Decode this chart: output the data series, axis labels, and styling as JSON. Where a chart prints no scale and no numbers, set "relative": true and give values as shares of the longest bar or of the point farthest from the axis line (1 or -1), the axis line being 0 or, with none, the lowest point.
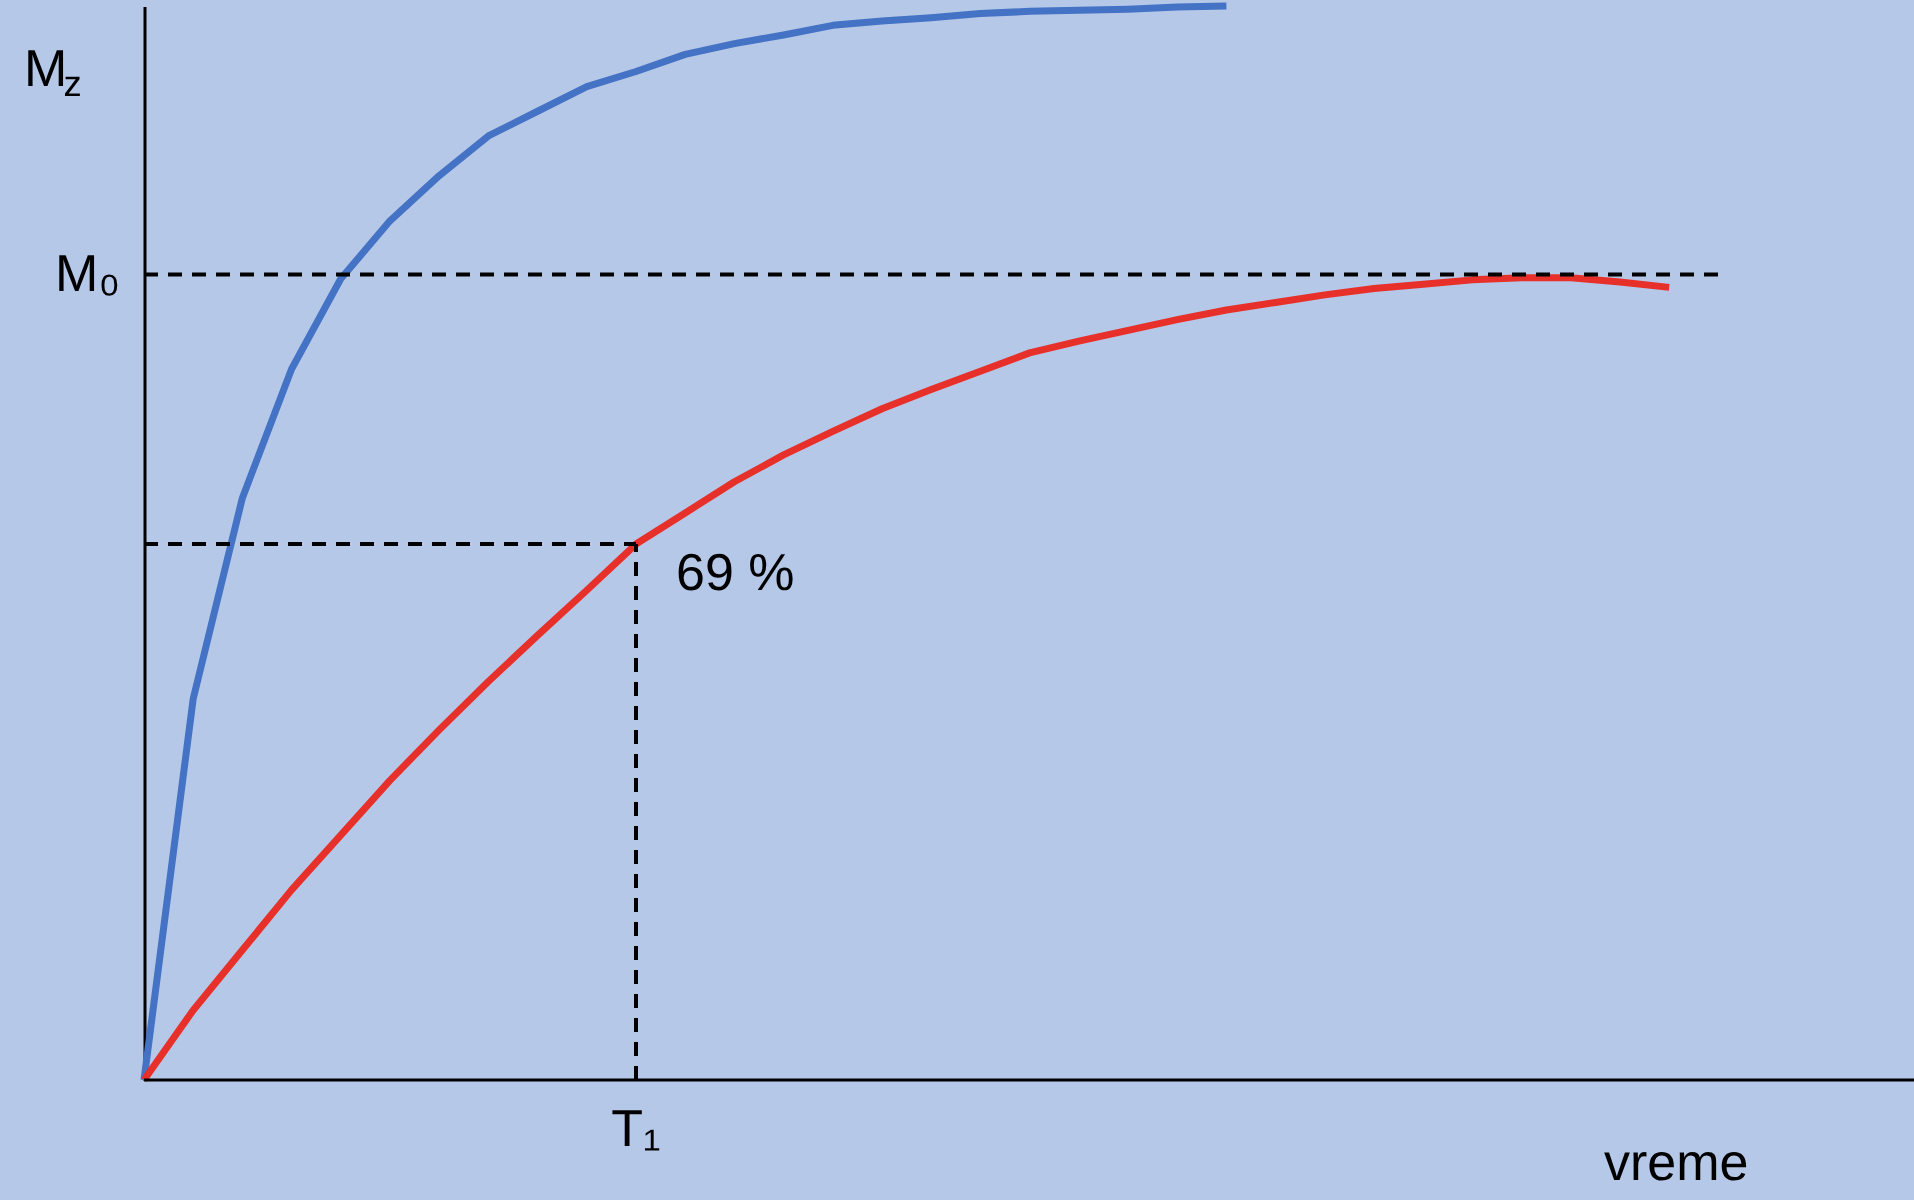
{
  "chart_data": {
    "type": "line",
    "relative": true,
    "xlabel": "vreme",
    "ylabel": "M$_{z}$",
    "categories": [
      null,
      null,
      null,
      null,
      null,
      null,
      null,
      null,
      null,
      null,
      null,
      null,
      null,
      null,
      null,
      null,
      null,
      null,
      null,
      null,
      null,
      null,
      null,
      null,
      null,
      null,
      null,
      null,
      null,
      null,
      null,
      null
    ],
    "series": [
      {
        "color": "#4472c4",
        "values": [
          0,
          0.355,
          0.542,
          0.662,
          0.746,
          0.8,
          0.842,
          0.879,
          0.902,
          0.925,
          0.939,
          0.955,
          0.965,
          0.973,
          0.982,
          0.986,
          0.989,
          0.993,
          0.995,
          0.996,
          0.997,
          0.999,
          1.0,
          null,
          null,
          null,
          null,
          null,
          null,
          null,
          null,
          null
        ]
      },
      {
        "color": "#e8302a",
        "values": [
          0,
          0.065,
          0.121,
          0.177,
          0.228,
          0.279,
          0.326,
          0.371,
          0.414,
          0.456,
          0.499,
          0.528,
          0.557,
          0.582,
          0.604,
          0.625,
          0.643,
          0.66,
          0.677,
          0.688,
          0.698,
          0.708,
          0.717,
          0.724,
          0.731,
          0.737,
          0.741,
          0.745,
          0.747,
          0.747,
          0.743,
          0.738
        ]
      }
    ],
    "ref_lines": [
      {
        "axis": "y",
        "value": 0.75,
        "label": "M₀",
        "line_style": "dashed"
      },
      {
        "axis": "y",
        "value": 0.499,
        "line_style": "dashed"
      }
    ],
    "annotations": [
      "69 %",
      "T₁"
    ],
    "grid": false,
    "line_style": "solid",
    "marker": "none"
  }
}
